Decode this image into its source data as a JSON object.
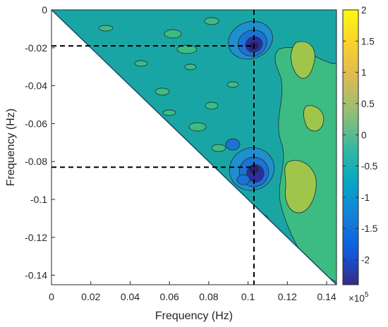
{
  "chart_data": {
    "type": "heatmap",
    "subtype": "filled-contour-triangular",
    "xlabel": "Frequency (Hz)",
    "ylabel": "Frequency (Hz)",
    "xlim": [
      0,
      0.145
    ],
    "ylim": [
      -0.145,
      0
    ],
    "x_ticks": [
      0,
      0.02,
      0.04,
      0.06,
      0.08,
      0.1,
      0.12,
      0.14
    ],
    "x_tick_labels": [
      "0",
      "0.02",
      "0.04",
      "0.06",
      "0.08",
      "0.1",
      "0.12",
      "0.14"
    ],
    "y_ticks": [
      0,
      -0.02,
      -0.04,
      -0.06,
      -0.08,
      -0.1,
      -0.12,
      -0.14
    ],
    "y_tick_labels": [
      "0",
      "-0.02",
      "-0.04",
      "-0.06",
      "-0.08",
      "-0.1",
      "-0.12",
      "-0.14"
    ],
    "colorbar": {
      "range": [
        -2.4,
        2.0
      ],
      "ticks": [
        2,
        1.5,
        1,
        0.5,
        0,
        -0.5,
        -1,
        -1.5,
        -2
      ],
      "tick_labels": [
        "2",
        "1.5",
        "1",
        "0.5",
        "0",
        "-0.5",
        "-1",
        "-1.5",
        "-2"
      ],
      "multiplier_base": "×10",
      "multiplier_exp": "5",
      "colormap": "parula"
    },
    "domain": "lower-left triangle removed (y < -x is blank)",
    "markers": {
      "vertical_line_x": 0.103,
      "horizontal_lines_y": [
        -0.019,
        -0.083
      ]
    },
    "peaks": [
      {
        "x": 0.103,
        "y": -0.019,
        "value": -2.3
      },
      {
        "x": 0.103,
        "y": -0.084,
        "value": -2.2
      }
    ],
    "background_level": -0.4,
    "colors": {
      "background_field": "#1aa5a5",
      "mid_green": "#3cbc82",
      "yellow_green": "#9fc64b",
      "blue": "#1d72d6",
      "dark_blue": "#2c2e9e",
      "darkest": "#2a1c74"
    }
  }
}
